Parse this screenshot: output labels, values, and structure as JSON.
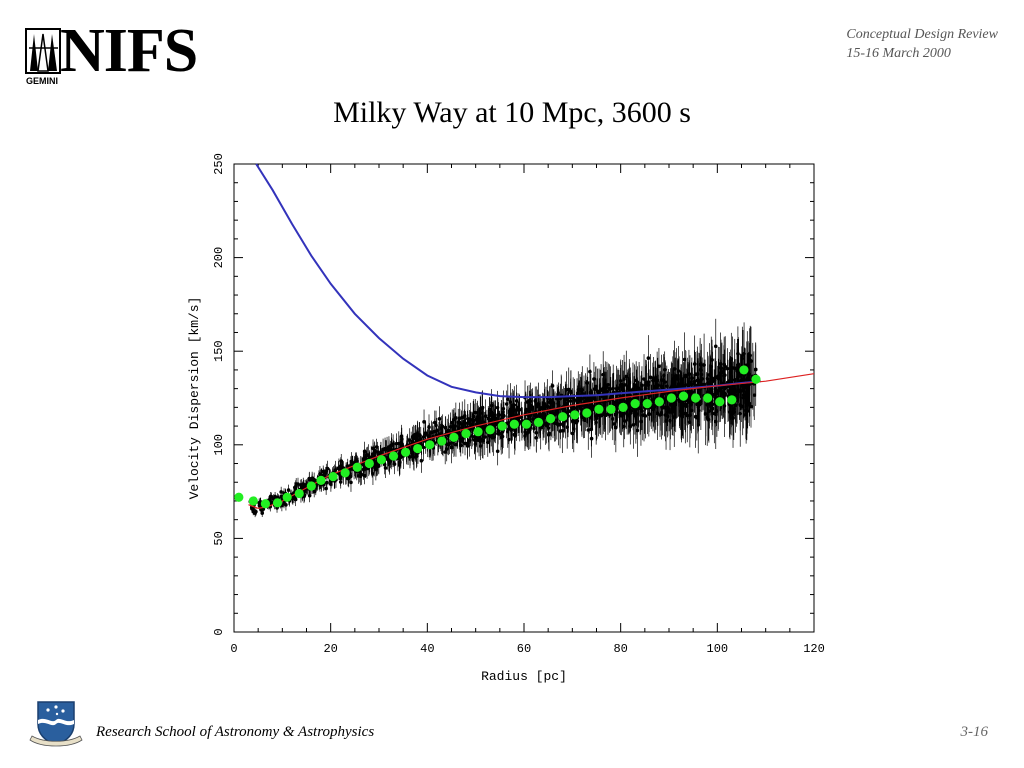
{
  "header": {
    "logo_text": "NIFS",
    "logo_subtext": "GEMINI",
    "review_line1": "Conceptual Design Review",
    "review_line2": "15-16 March 2000"
  },
  "slide": {
    "title": "Milky Way at 10 Mpc, 3600 s"
  },
  "footer": {
    "institute": "Research School of Astronomy & Astrophysics",
    "page": "3-16"
  },
  "colors": {
    "model_curve": "#3333bb",
    "fit_curve": "#dd2222",
    "binned_points": "#22ee22",
    "data_points": "#000000"
  },
  "chart_data": {
    "type": "scatter",
    "title": "",
    "xlabel": "Radius [pc]",
    "ylabel": "Velocity Dispersion [km/s]",
    "xlim": [
      0,
      120
    ],
    "ylim": [
      0,
      250
    ],
    "x_ticks": [
      0,
      20,
      40,
      60,
      80,
      100,
      120
    ],
    "y_ticks": [
      0,
      50,
      100,
      150,
      200,
      250
    ],
    "grid": false,
    "series": [
      {
        "kind": "line",
        "color": "#3333bb",
        "x": [
          4.6,
          8,
          12,
          16,
          20,
          25,
          30,
          35,
          40,
          45,
          50,
          55,
          60,
          65,
          70,
          75,
          80,
          85,
          90,
          95,
          100,
          105,
          109
        ],
        "y": [
          250,
          236,
          218,
          201,
          186,
          170,
          157,
          146,
          137,
          131,
          128,
          126,
          125.5,
          125.5,
          126,
          126.5,
          127.5,
          128.5,
          129.5,
          130.5,
          131.5,
          133,
          134
        ]
      },
      {
        "kind": "line",
        "color": "#dd2222",
        "x": [
          3,
          5,
          7,
          10,
          15,
          20,
          30,
          40,
          50,
          60,
          70,
          80,
          90,
          100,
          110,
          120
        ],
        "y": [
          68,
          66,
          67,
          70,
          77,
          84,
          94,
          103,
          110,
          116,
          121,
          125,
          128.5,
          131.5,
          134,
          138
        ]
      },
      {
        "kind": "scatter",
        "color": "#22ee22",
        "x": [
          1,
          4,
          6.5,
          9,
          11,
          13.5,
          16,
          18,
          20.5,
          23,
          25.5,
          28,
          30.5,
          33,
          35.5,
          38,
          40.5,
          43,
          45.5,
          48,
          50.5,
          53,
          55.5,
          58,
          60.5,
          63,
          65.5,
          68,
          70.5,
          73,
          75.5,
          78,
          80.5,
          83,
          85.5,
          88,
          90.5,
          93,
          95.5,
          98,
          100.5,
          103,
          105.5,
          108
        ],
        "y": [
          72,
          70,
          68.5,
          69,
          72,
          74,
          78,
          81,
          83,
          85,
          88,
          90,
          92,
          94,
          96,
          98,
          100,
          102,
          104,
          106,
          107,
          108,
          110,
          111,
          111,
          112,
          114,
          115,
          116,
          117,
          119,
          119,
          120,
          122,
          122,
          123,
          125,
          126,
          125,
          125,
          123,
          124,
          140,
          135
        ]
      }
    ],
    "scatter_cloud": {
      "description_rows": [
        {
          "x": 5,
          "y": 67
        },
        {
          "x": 10,
          "y": 71
        },
        {
          "x": 15,
          "y": 77
        },
        {
          "x": 20,
          "y": 83
        },
        {
          "x": 25,
          "y": 88
        },
        {
          "x": 30,
          "y": 93
        },
        {
          "x": 35,
          "y": 97
        },
        {
          "x": 40,
          "y": 102
        },
        {
          "x": 50,
          "y": 109
        },
        {
          "x": 60,
          "y": 115
        },
        {
          "x": 70,
          "y": 120
        },
        {
          "x": 80,
          "y": 124
        },
        {
          "x": 90,
          "y": 127
        },
        {
          "x": 100,
          "y": 130
        },
        {
          "x": 108,
          "y": 133
        }
      ]
    }
  }
}
